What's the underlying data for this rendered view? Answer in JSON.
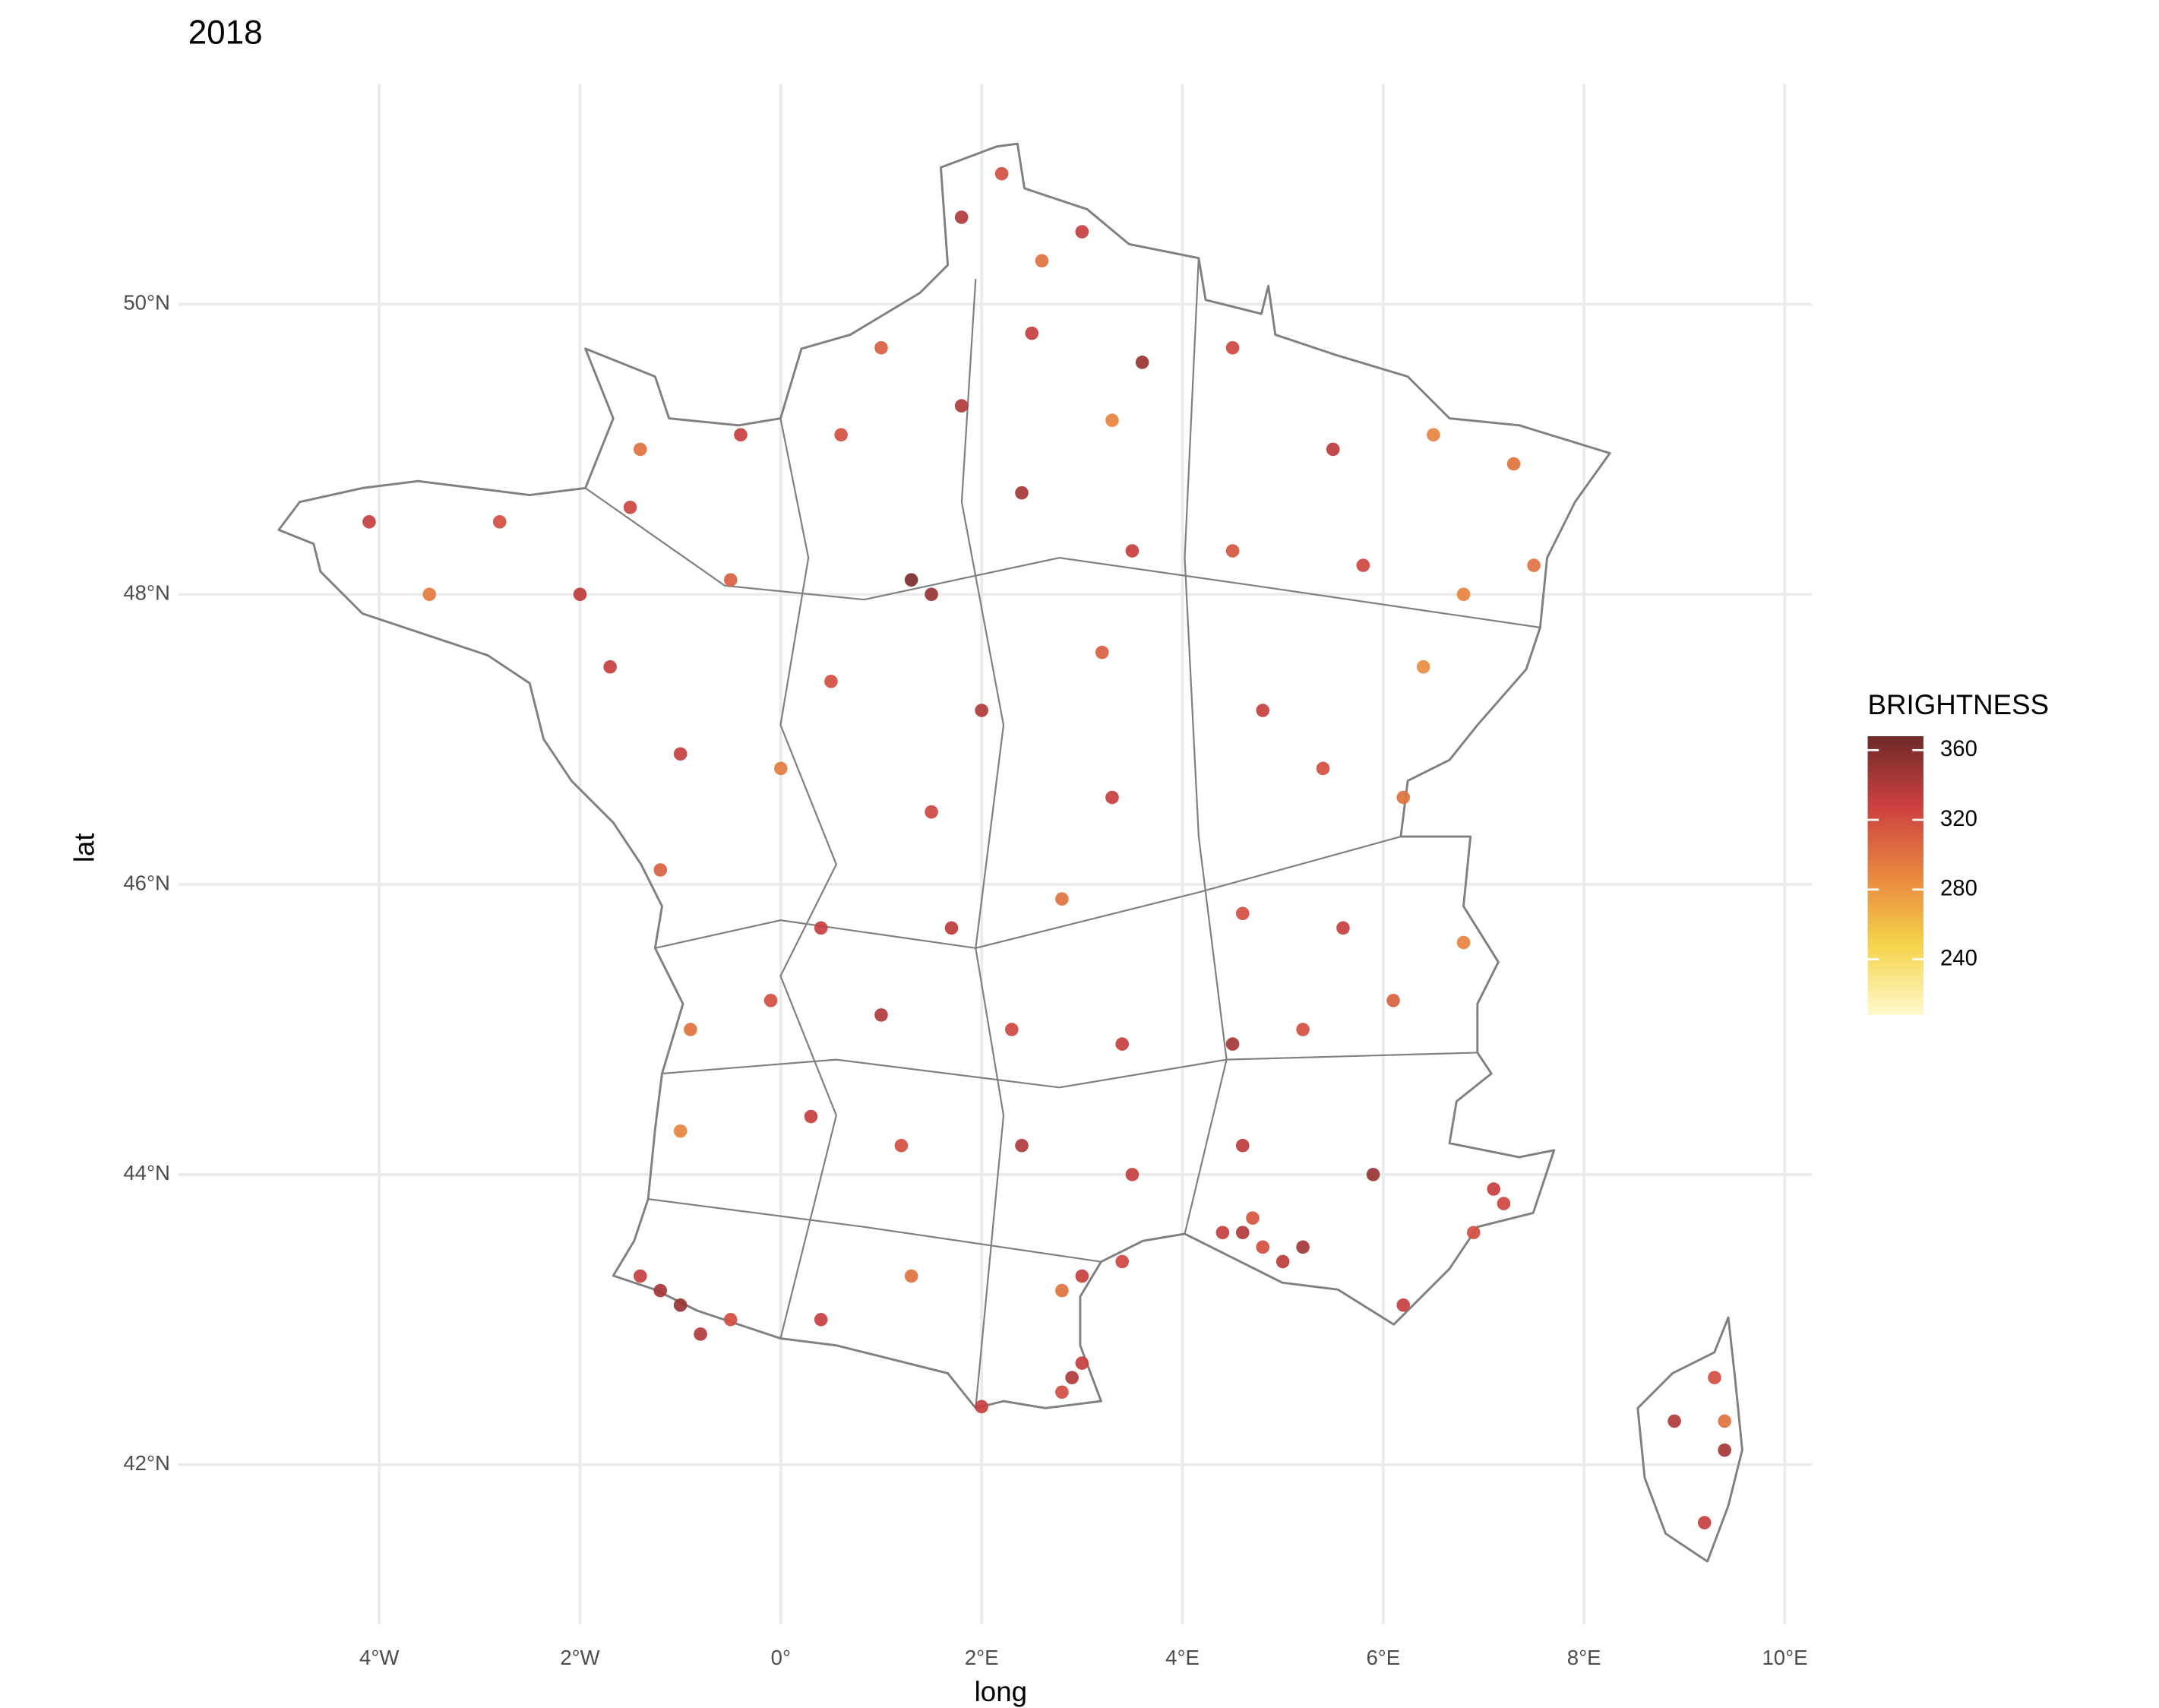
{
  "chart_data": {
    "type": "scatter",
    "title": "2018",
    "x_label": "long",
    "y_label": "lat",
    "color_label": "BRIGHTNESS",
    "xlim": [
      -6,
      10.27
    ],
    "ylim": [
      40.9,
      51.52
    ],
    "xticks": [
      {
        "value": -4,
        "label": "4°W"
      },
      {
        "value": -2,
        "label": "2°W"
      },
      {
        "value": 0,
        "label": "0°"
      },
      {
        "value": 2,
        "label": "2°E"
      },
      {
        "value": 4,
        "label": "4°E"
      },
      {
        "value": 6,
        "label": "6°E"
      },
      {
        "value": 8,
        "label": "8°E"
      },
      {
        "value": 10,
        "label": "10°E"
      }
    ],
    "yticks": [
      {
        "value": 42,
        "label": "42°N"
      },
      {
        "value": 44,
        "label": "44°N"
      },
      {
        "value": 46,
        "label": "46°N"
      },
      {
        "value": 48,
        "label": "48°N"
      },
      {
        "value": 50,
        "label": "50°N"
      }
    ],
    "grid": true,
    "colorbar": {
      "lim": [
        208,
        368
      ],
      "ticks": [
        240,
        280,
        320,
        360
      ],
      "colors": [
        "#fffacd",
        "#f5d44a",
        "#e8873f",
        "#cc4040",
        "#6e2a28"
      ]
    },
    "x": [
      2.2,
      3.0,
      1.8,
      2.6,
      1.0,
      2.5,
      3.6,
      4.5,
      1.8,
      3.3,
      -1.4,
      -0.4,
      0.6,
      5.5,
      6.5,
      7.3,
      -4.1,
      -2.8,
      -1.5,
      -3.5,
      -2.0,
      -0.5,
      1.3,
      1.5,
      2.4,
      3.5,
      4.5,
      5.8,
      6.8,
      7.5,
      -1.7,
      0.5,
      2.0,
      3.2,
      4.8,
      6.4,
      -1.0,
      0.0,
      1.5,
      3.3,
      5.4,
      6.2,
      -1.2,
      0.4,
      1.7,
      2.8,
      4.6,
      5.6,
      6.8,
      -0.9,
      -0.1,
      1.0,
      2.3,
      3.4,
      4.5,
      5.2,
      6.1,
      -1.0,
      0.3,
      1.2,
      2.4,
      3.5,
      4.6,
      5.9,
      7.1,
      4.4,
      4.6,
      4.8,
      5.0,
      5.2,
      4.7,
      3.4,
      3.0,
      2.8,
      2.9,
      3.0,
      2.8,
      -1.2,
      -1.0,
      -0.8,
      -1.4,
      -0.5,
      0.4,
      1.3,
      2.0,
      6.2,
      6.9,
      7.2,
      8.9,
      9.3,
      9.4,
      9.2,
      9.4
    ],
    "values": [
      50.9,
      50.5,
      50.6,
      50.3,
      49.7,
      49.8,
      49.6,
      49.7,
      49.3,
      49.2,
      49.0,
      49.1,
      49.1,
      49.0,
      49.1,
      48.9,
      48.5,
      48.5,
      48.6,
      48.0,
      48.0,
      48.1,
      48.1,
      48.0,
      48.7,
      48.3,
      48.3,
      48.2,
      48.0,
      48.2,
      47.5,
      47.4,
      47.2,
      47.6,
      47.2,
      47.5,
      46.9,
      46.8,
      46.5,
      46.6,
      46.8,
      46.6,
      46.1,
      45.7,
      45.7,
      45.9,
      45.8,
      45.7,
      45.6,
      45.0,
      45.2,
      45.1,
      45.0,
      44.9,
      44.9,
      45.0,
      45.2,
      44.3,
      44.4,
      44.2,
      44.2,
      44.0,
      44.2,
      44.0,
      43.9,
      43.6,
      43.6,
      43.5,
      43.4,
      43.5,
      43.7,
      43.4,
      43.3,
      43.2,
      42.6,
      42.7,
      42.5,
      43.2,
      43.1,
      42.9,
      43.3,
      43.0,
      43.0,
      43.3,
      42.4,
      43.1,
      43.6,
      43.8,
      42.3,
      42.6,
      42.1,
      41.6,
      42.3
    ],
    "brightness": [
      320,
      330,
      340,
      300,
      310,
      330,
      350,
      325,
      340,
      290,
      300,
      330,
      320,
      335,
      290,
      300,
      330,
      320,
      325,
      295,
      335,
      310,
      362,
      350,
      345,
      330,
      315,
      325,
      290,
      300,
      330,
      320,
      340,
      310,
      330,
      285,
      330,
      295,
      325,
      330,
      320,
      300,
      310,
      330,
      335,
      300,
      320,
      330,
      290,
      300,
      320,
      340,
      325,
      330,
      345,
      320,
      310,
      290,
      330,
      320,
      340,
      330,
      335,
      350,
      330,
      330,
      340,
      320,
      335,
      345,
      315,
      325,
      330,
      300,
      340,
      330,
      320,
      345,
      350,
      340,
      330,
      320,
      330,
      300,
      330,
      330,
      320,
      325,
      340,
      320,
      345,
      330,
      300
    ]
  }
}
